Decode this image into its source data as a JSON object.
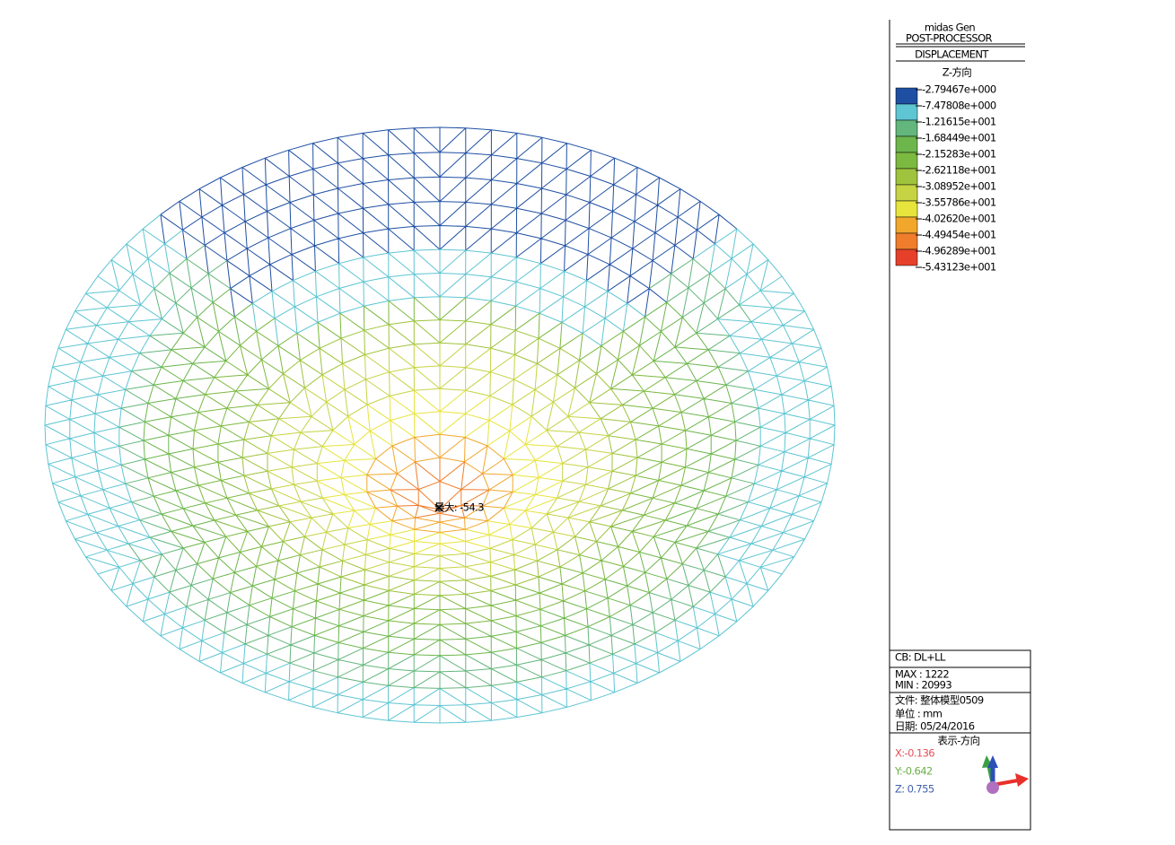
{
  "header": {
    "program": "midas Gen",
    "module": "POST-PROCESSOR",
    "result": "DISPLACEMENT",
    "component": "Z-方向"
  },
  "legend": {
    "labels": [
      "-2.79467e+000",
      "-7.47808e+000",
      "-1.21615e+001",
      "-1.68449e+001",
      "-2.15283e+001",
      "-2.62118e+001",
      "-3.08952e+001",
      "-3.55786e+001",
      "-4.02620e+001",
      "-4.49454e+001",
      "-4.96289e+001",
      "-5.43123e+001"
    ],
    "colors": [
      "#1f4fa3",
      "#5ec5d2",
      "#63b67c",
      "#6cb64c",
      "#7cb940",
      "#9fc33c",
      "#c6d444",
      "#e7e43c",
      "#f1a72c",
      "#ef7d2b",
      "#e6402b"
    ]
  },
  "annotation": "最大: -54.3",
  "info": {
    "load_case": "CB: DL+LL",
    "max": "MAX : 1222",
    "min": "MIN : 20993",
    "file": "文件: 整体模型0509",
    "unit": "单位 : mm",
    "date": "日期: 05/24/2016",
    "view_title": "表示-方向",
    "x": "X:-0.136",
    "y": "Y:-0.642",
    "z": "Z: 0.755"
  }
}
